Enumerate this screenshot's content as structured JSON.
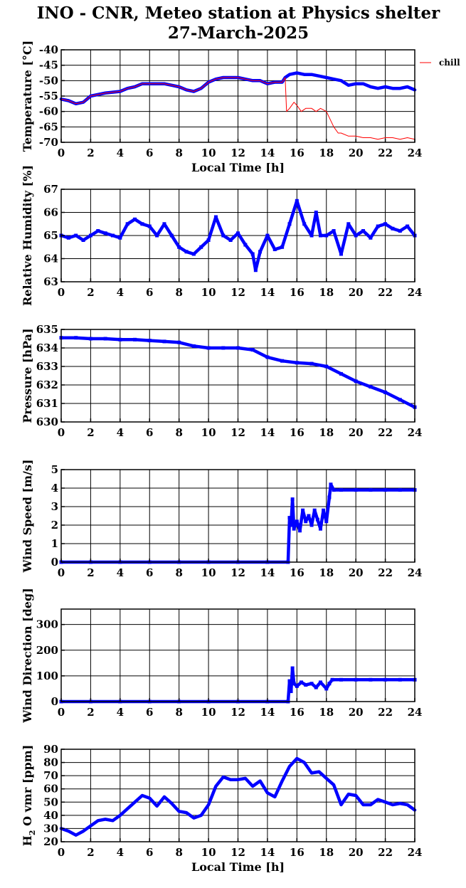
{
  "title_line1": "INO - CNR, Meteo station at Physics shelter",
  "title_line2": "27-March-2025",
  "colors": {
    "series": "#0000ff",
    "chill": "#ff0000",
    "grid": "#000000"
  },
  "chart_data": [
    {
      "type": "line",
      "ylabel": "Temperature [°C]",
      "xlabel": "Local Time [h]",
      "xlim": [
        0,
        24
      ],
      "ylim": [
        -70,
        -40
      ],
      "xticks": [
        0,
        2,
        4,
        6,
        8,
        10,
        12,
        14,
        16,
        18,
        20,
        22,
        24
      ],
      "yticks": [
        -70,
        -65,
        -60,
        -55,
        -50,
        -45,
        -40
      ],
      "grid": true,
      "legend": "top-right",
      "series": [
        {
          "color": "#0000ff",
          "x": [
            0,
            0.5,
            1,
            1.5,
            2,
            3,
            4,
            4.5,
            5,
            5.5,
            6,
            6.5,
            7,
            7.5,
            8,
            8.5,
            9,
            9.5,
            10,
            10.5,
            11,
            11.5,
            12,
            12.5,
            13,
            13.5,
            14,
            14.5,
            15,
            15.2,
            15.5,
            16,
            16.5,
            17,
            17.5,
            18,
            18.5,
            19,
            19.5,
            20,
            20.5,
            21,
            21.5,
            22,
            22.5,
            23,
            23.5,
            24
          ],
          "y": [
            -56,
            -56.5,
            -57.5,
            -57,
            -55,
            -54,
            -53.5,
            -52.5,
            -52,
            -51,
            -51,
            -51,
            -51,
            -51.5,
            -52,
            -53,
            -53.5,
            -52.5,
            -50.5,
            -49.5,
            -49,
            -49,
            -49,
            -49.5,
            -50,
            -50,
            -51,
            -50.5,
            -50.5,
            -49,
            -48,
            -47.5,
            -48,
            -48,
            -48.5,
            -49,
            -49.5,
            -50,
            -51.5,
            -51,
            -51,
            -52,
            -52.5,
            -52,
            -52.5,
            -52.5,
            -52,
            -53
          ]
        },
        {
          "name": "chill",
          "color": "#ff0000",
          "x": [
            0,
            0.5,
            1,
            1.5,
            2,
            3,
            4,
            4.5,
            5,
            5.5,
            6,
            6.5,
            7,
            7.5,
            8,
            8.5,
            9,
            9.5,
            10,
            10.5,
            11,
            11.5,
            12,
            12.5,
            13,
            13.5,
            14,
            14.5,
            15,
            15.2,
            15.3,
            15.5,
            15.8,
            16,
            16.3,
            16.6,
            17,
            17.3,
            17.6,
            18,
            18.2,
            18.5,
            18.8,
            19,
            19.5,
            20,
            20.5,
            21,
            21.5,
            22,
            22.5,
            23,
            23.5,
            24
          ],
          "y": [
            -56,
            -56.5,
            -57.5,
            -57,
            -55,
            -54,
            -53.5,
            -52.5,
            -52,
            -51,
            -51,
            -51,
            -51,
            -51.5,
            -52,
            -53,
            -53.5,
            -52.5,
            -50.5,
            -49.5,
            -49,
            -49,
            -49,
            -49.5,
            -50,
            -50,
            -51,
            -50.5,
            -50.5,
            -49,
            -60,
            -59,
            -57,
            -58,
            -60,
            -59,
            -59,
            -60,
            -59,
            -60,
            -62,
            -65,
            -67,
            -67,
            -68,
            -68,
            -68.5,
            -68.5,
            -69,
            -68.5,
            -68.5,
            -69,
            -68.5,
            -69
          ]
        }
      ]
    },
    {
      "type": "scatter",
      "ylabel": "Relative Humidity [%]",
      "xlim": [
        0,
        24
      ],
      "ylim": [
        63,
        67
      ],
      "xticks": [
        0,
        2,
        4,
        6,
        8,
        10,
        12,
        14,
        16,
        18,
        20,
        22,
        24
      ],
      "yticks": [
        63,
        64,
        65,
        66,
        67
      ],
      "grid": true,
      "series": [
        {
          "color": "#0000ff",
          "x": [
            0,
            0.5,
            1,
            1.5,
            2,
            2.5,
            3,
            3.5,
            4,
            4.5,
            5,
            5.5,
            6,
            6.5,
            7,
            7.5,
            8,
            8.5,
            9,
            9.5,
            10,
            10.5,
            11,
            11.5,
            12,
            12.5,
            13,
            13.2,
            13.5,
            14,
            14.5,
            15,
            15.5,
            16,
            16.5,
            17,
            17.3,
            17.6,
            18,
            18.5,
            19,
            19.5,
            20,
            20.5,
            21,
            21.5,
            22,
            22.5,
            23,
            23.5,
            24
          ],
          "y": [
            65,
            64.9,
            65,
            64.8,
            65,
            65.2,
            65.1,
            65,
            64.9,
            65.5,
            65.7,
            65.5,
            65.4,
            65,
            65.5,
            65,
            64.5,
            64.3,
            64.2,
            64.5,
            64.8,
            65.8,
            65,
            64.8,
            65.1,
            64.6,
            64.2,
            63.5,
            64.3,
            65,
            64.4,
            64.5,
            65.5,
            66.5,
            65.5,
            65,
            66,
            65,
            65,
            65.2,
            64.2,
            65.5,
            65,
            65.2,
            64.9,
            65.4,
            65.5,
            65.3,
            65.2,
            65.4,
            65
          ]
        }
      ]
    },
    {
      "type": "scatter",
      "ylabel": "Pressure [hPa]",
      "xlim": [
        0,
        24
      ],
      "ylim": [
        630,
        635
      ],
      "xticks": [
        0,
        2,
        4,
        6,
        8,
        10,
        12,
        14,
        16,
        18,
        20,
        22,
        24
      ],
      "yticks": [
        630,
        631,
        632,
        633,
        634,
        635
      ],
      "grid": true,
      "series": [
        {
          "color": "#0000ff",
          "x": [
            0,
            1,
            2,
            3,
            4,
            5,
            6,
            7,
            8,
            9,
            10,
            11,
            12,
            13,
            14,
            15,
            16,
            17,
            18,
            19,
            20,
            21,
            22,
            23,
            24
          ],
          "y": [
            634.55,
            634.55,
            634.5,
            634.5,
            634.45,
            634.45,
            634.4,
            634.35,
            634.3,
            634.1,
            634,
            634,
            634,
            633.9,
            633.5,
            633.3,
            633.2,
            633.15,
            633,
            632.6,
            632.2,
            631.9,
            631.6,
            631.2,
            630.8
          ]
        }
      ]
    },
    {
      "type": "scatter",
      "ylabel": "Wind Speed [m/s]",
      "xlim": [
        0,
        24
      ],
      "ylim": [
        0,
        5
      ],
      "xticks": [
        0,
        2,
        4,
        6,
        8,
        10,
        12,
        14,
        16,
        18,
        20,
        22,
        24
      ],
      "yticks": [
        0,
        1,
        2,
        3,
        4,
        5
      ],
      "grid": true,
      "series": [
        {
          "color": "#0000ff",
          "x": [
            0,
            2,
            4,
            6,
            8,
            10,
            12,
            14,
            15.4,
            15.5,
            15.6,
            15.7,
            15.8,
            16,
            16.2,
            16.4,
            16.6,
            16.8,
            17,
            17.2,
            17.4,
            17.6,
            17.8,
            18,
            18.2,
            18.3,
            18.5,
            19,
            20,
            21,
            22,
            23,
            24
          ],
          "y": [
            0,
            0,
            0,
            0,
            0,
            0,
            0,
            0,
            0,
            2.4,
            2,
            3.4,
            1.8,
            2.2,
            1.7,
            2.8,
            2.2,
            2.5,
            2,
            2.8,
            2.3,
            1.8,
            2.8,
            2.2,
            3.5,
            4.2,
            3.9,
            3.9,
            3.9,
            3.9,
            3.9,
            3.9,
            3.9
          ]
        }
      ]
    },
    {
      "type": "scatter",
      "ylabel": "Wind Direction [deg]",
      "xlim": [
        0,
        24
      ],
      "ylim": [
        0,
        360
      ],
      "xticks": [
        0,
        2,
        4,
        6,
        8,
        10,
        12,
        14,
        16,
        18,
        20,
        22,
        24
      ],
      "yticks": [
        0,
        100,
        200,
        300
      ],
      "grid": true,
      "series": [
        {
          "color": "#0000ff",
          "x": [
            0,
            2,
            4,
            6,
            8,
            10,
            12,
            14,
            15.4,
            15.5,
            15.6,
            15.7,
            15.8,
            16,
            16.3,
            16.6,
            17,
            17.3,
            17.6,
            18,
            18.2,
            18.4,
            19,
            20,
            21,
            22,
            23,
            24
          ],
          "y": [
            0,
            0,
            0,
            0,
            0,
            0,
            0,
            0,
            0,
            80,
            40,
            130,
            70,
            60,
            75,
            65,
            70,
            55,
            75,
            50,
            70,
            85,
            85,
            85,
            85,
            85,
            85,
            85
          ]
        }
      ]
    },
    {
      "type": "line",
      "ylabel": "H2O vmr [ppm]",
      "ylabel_main": "H",
      "ylabel_sub": "2",
      "ylabel_rest": "O vmr [ppm]",
      "xlabel": "Local Time [h]",
      "xlim": [
        0,
        24
      ],
      "ylim": [
        20,
        90
      ],
      "xticks": [
        0,
        2,
        4,
        6,
        8,
        10,
        12,
        14,
        16,
        18,
        20,
        22,
        24
      ],
      "yticks": [
        20,
        30,
        40,
        50,
        60,
        70,
        80,
        90
      ],
      "grid": true,
      "series": [
        {
          "color": "#0000ff",
          "x": [
            0,
            0.5,
            1,
            1.5,
            2,
            2.5,
            3,
            3.5,
            4,
            4.5,
            5,
            5.5,
            6,
            6.5,
            7,
            7.5,
            8,
            8.5,
            9,
            9.5,
            10,
            10.5,
            11,
            11.5,
            12,
            12.5,
            13,
            13.5,
            14,
            14.5,
            15,
            15.5,
            16,
            16.5,
            17,
            17.5,
            18,
            18.5,
            19,
            19.5,
            20,
            20.5,
            21,
            21.5,
            22,
            22.5,
            23,
            23.5,
            24
          ],
          "y": [
            30,
            28,
            25,
            28,
            32,
            36,
            37,
            36,
            40,
            45,
            50,
            55,
            53,
            47,
            54,
            49,
            43,
            42,
            38,
            40,
            48,
            62,
            69,
            67,
            67,
            68,
            62,
            66,
            57,
            54,
            66,
            77,
            83,
            80,
            72,
            73,
            68,
            63,
            48,
            56,
            55,
            48,
            48,
            52,
            50,
            48,
            49,
            48,
            44
          ]
        }
      ]
    }
  ]
}
